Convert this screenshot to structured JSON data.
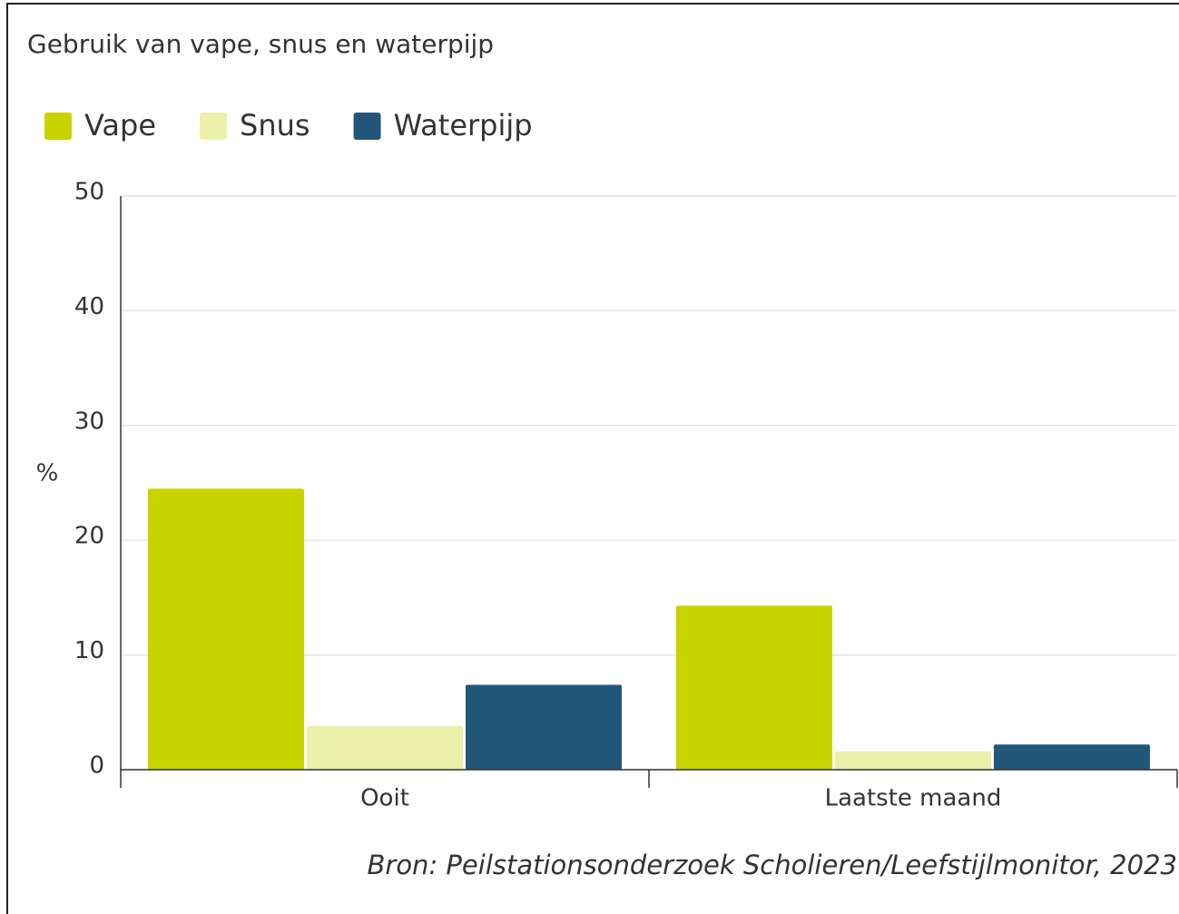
{
  "chart_data": {
    "type": "bar",
    "title": "Gebruik van vape, snus en waterpijp",
    "y_label": "%",
    "source": "Bron: Peilstationsonderzoek Scholieren/Leefstijlmonitor, 2023",
    "categories": [
      "Ooit",
      "Laatste maand"
    ],
    "series": [
      {
        "name": "Vape",
        "color": "#c8d400",
        "values": [
          24.5,
          14.3
        ]
      },
      {
        "name": "Snus",
        "color": "#eaf0a8",
        "values": [
          3.8,
          1.6
        ]
      },
      {
        "name": "Waterpijp",
        "color": "#22577a",
        "values": [
          7.4,
          2.2
        ]
      }
    ],
    "ylim": [
      0,
      50
    ],
    "yticks": [
      0,
      10,
      20,
      30,
      40,
      50
    ],
    "grid": true
  }
}
